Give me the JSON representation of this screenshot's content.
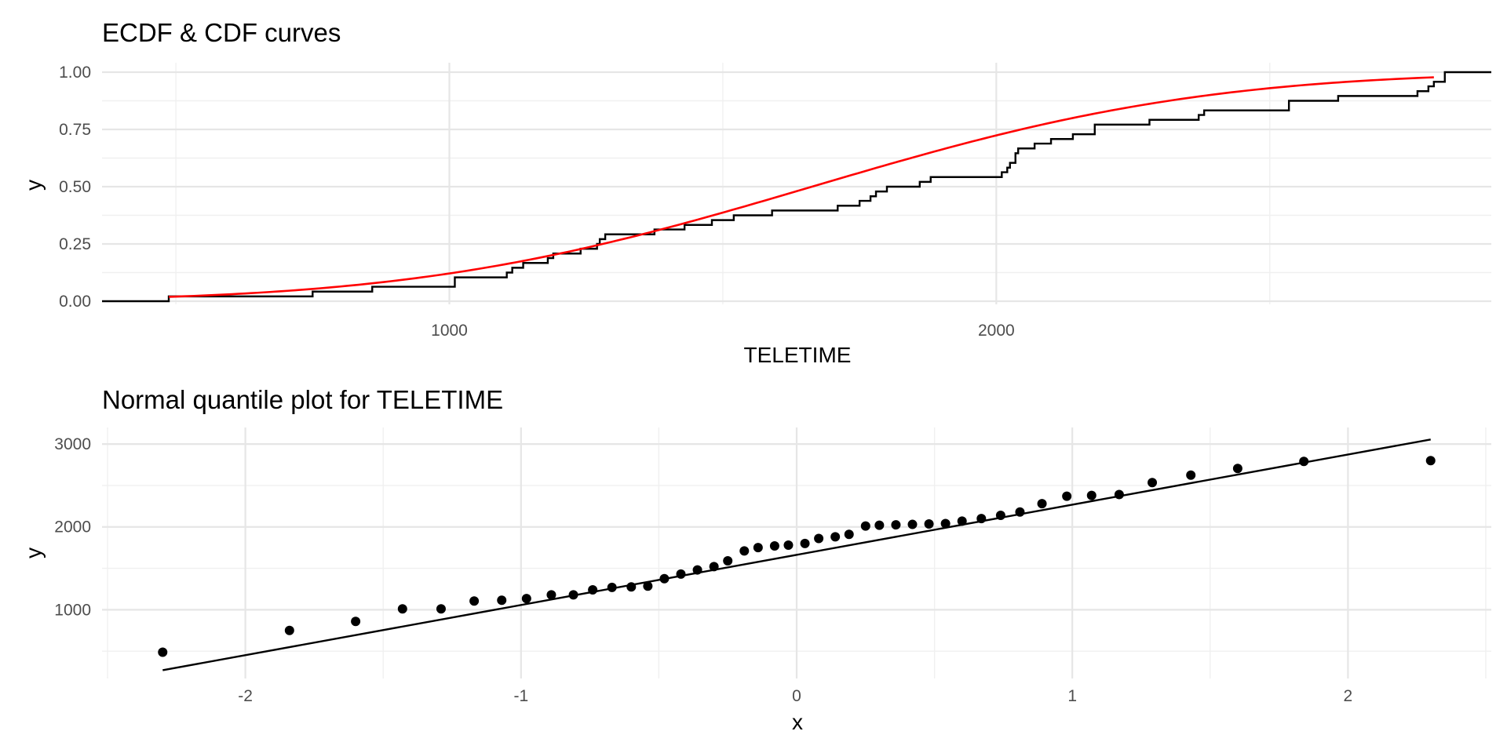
{
  "chart_data": [
    {
      "type": "line",
      "title": "ECDF & CDF curves",
      "xlabel": "TELETIME",
      "ylabel": "y",
      "xlim": [
        365,
        2905
      ],
      "ylim": [
        0,
        1
      ],
      "x_ticks": [
        1000,
        2000
      ],
      "x_tick_labels": [
        "1000",
        "2000"
      ],
      "x_minor_ticks": [
        500,
        1500,
        2500
      ],
      "y_ticks": [
        0,
        0.25,
        0.5,
        0.75,
        1
      ],
      "y_tick_labels": [
        "0.00",
        "0.25",
        "0.50",
        "0.75",
        "1.00"
      ],
      "grid": true,
      "legend": "none",
      "series": [
        {
          "kind": "ecdf-step",
          "color": "#000000",
          "x": [
            487,
            750,
            859,
            1010,
            1105,
            1115,
            1135,
            1180,
            1190,
            1240,
            1270,
            1275,
            1285,
            1375,
            1430,
            1480,
            1520,
            1590,
            1710,
            1750,
            1770,
            1780,
            1800,
            1860,
            1880,
            2010,
            2020,
            2025,
            2035,
            2040,
            2070,
            2100,
            2140,
            2180,
            2280,
            2370,
            2380,
            2535,
            2625,
            2770,
            2790,
            2800
          ],
          "y": [
            0.021,
            0.042,
            0.063,
            0.104,
            0.125,
            0.146,
            0.167,
            0.188,
            0.208,
            0.229,
            0.25,
            0.271,
            0.292,
            0.313,
            0.333,
            0.354,
            0.375,
            0.396,
            0.417,
            0.438,
            0.458,
            0.479,
            0.5,
            0.521,
            0.542,
            0.563,
            0.583,
            0.604,
            0.646,
            0.667,
            0.688,
            0.708,
            0.729,
            0.771,
            0.792,
            0.813,
            0.833,
            0.875,
            0.896,
            0.917,
            0.938,
            0.958
          ]
        },
        {
          "kind": "normal-cdf",
          "color": "#ff0000",
          "mean": 1663,
          "sd": 567,
          "x_range": [
            487,
            2800
          ]
        }
      ]
    },
    {
      "type": "scatter",
      "title": "Normal quantile plot for TELETIME",
      "xlabel": "x",
      "ylabel": "y",
      "xlim": [
        -2.52,
        2.52
      ],
      "ylim": [
        170,
        3200
      ],
      "x_ticks": [
        -2,
        -1,
        0,
        1,
        2
      ],
      "x_tick_labels": [
        "-2",
        "-1",
        "0",
        "1",
        "2"
      ],
      "x_minor_ticks": [
        -2.5,
        -1.5,
        -0.5,
        0.5,
        1.5,
        2.5
      ],
      "y_ticks": [
        1000,
        2000,
        3000
      ],
      "y_tick_labels": [
        "1000",
        "2000",
        "3000"
      ],
      "y_minor_ticks": [
        500,
        1500,
        2500
      ],
      "grid": true,
      "legend": "none",
      "points": {
        "color": "#000000",
        "x": [
          -2.3,
          -1.84,
          -1.6,
          -1.43,
          -1.29,
          -1.17,
          -1.07,
          -0.98,
          -0.89,
          -0.81,
          -0.74,
          -0.67,
          -0.6,
          -0.54,
          -0.48,
          -0.42,
          -0.36,
          -0.3,
          -0.25,
          -0.19,
          -0.14,
          -0.08,
          -0.03,
          0.03,
          0.08,
          0.14,
          0.19,
          0.25,
          0.3,
          0.36,
          0.42,
          0.48,
          0.54,
          0.6,
          0.67,
          0.74,
          0.81,
          0.89,
          0.98,
          1.07,
          1.17,
          1.29,
          1.43,
          1.6,
          1.84,
          2.3
        ],
        "y": [
          487,
          750,
          859,
          1010,
          1010,
          1105,
          1115,
          1135,
          1180,
          1180,
          1240,
          1270,
          1275,
          1285,
          1375,
          1430,
          1480,
          1520,
          1590,
          1710,
          1750,
          1770,
          1780,
          1800,
          1860,
          1880,
          1910,
          2010,
          2020,
          2025,
          2030,
          2035,
          2040,
          2070,
          2100,
          2140,
          2180,
          2280,
          2370,
          2380,
          2390,
          2535,
          2625,
          2705,
          2790,
          2800
        ]
      },
      "reference_line": {
        "color": "#000000",
        "x": [
          -2.3,
          2.3
        ],
        "y": [
          270,
          3055
        ]
      }
    }
  ]
}
